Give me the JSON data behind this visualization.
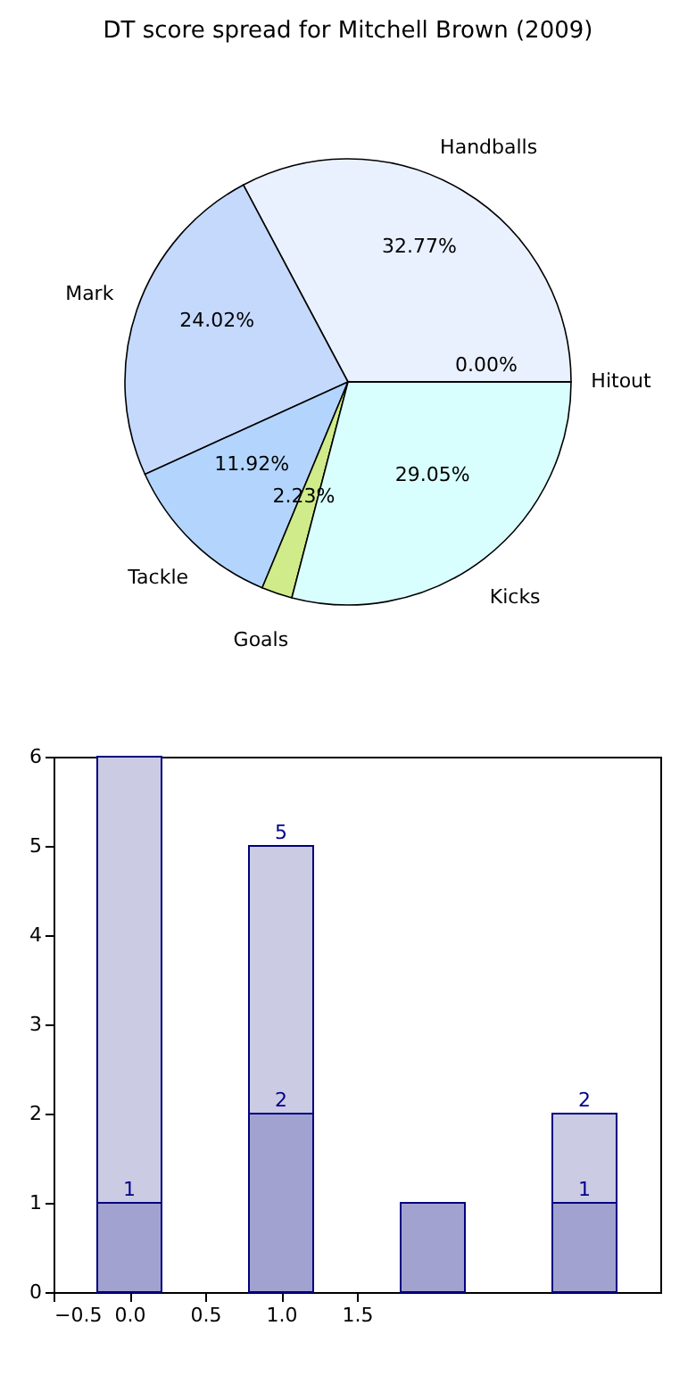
{
  "chart_data": [
    {
      "type": "pie",
      "title": "DT score spread for Mitchell Brown (2009)",
      "categories": [
        "Handballs",
        "Mark",
        "Tackle",
        "Goals",
        "Kicks",
        "Hitout"
      ],
      "values": [
        32.77,
        24.02,
        11.92,
        2.23,
        29.05,
        0
      ],
      "colors": [
        "#eaf1fe",
        "#c5d9fd",
        "#b3d5fd",
        "#d0eb8a",
        "#d9fefe",
        "#ffffff"
      ],
      "value_labels": [
        "32.77%",
        "24.02%",
        "11.92%",
        "2.23%",
        "29.05%",
        "0.00%"
      ]
    },
    {
      "type": "bar",
      "stacked": true,
      "x": [
        0,
        1,
        2,
        3
      ],
      "series": [
        {
          "color": "#a2a2d0",
          "values": [
            1,
            2,
            1,
            1
          ],
          "value_labels": [
            "1",
            "2",
            null,
            "1"
          ]
        },
        {
          "color": "#cbcbe3",
          "values": [
            5,
            3,
            null,
            1
          ]
        }
      ],
      "totals": [
        null,
        "5",
        null,
        "2"
      ],
      "xlim": [
        -0.5,
        3.5
      ],
      "xticks": [
        {
          "value": -0.5,
          "label": "−0.5"
        },
        {
          "value": 0,
          "label": "0.0"
        },
        0.5,
        {
          "value": 1,
          "label": "1.0"
        },
        1.5
      ],
      "ylim": [
        0,
        6
      ],
      "yticks": [
        0,
        1,
        2,
        3,
        4,
        5,
        6
      ]
    }
  ]
}
